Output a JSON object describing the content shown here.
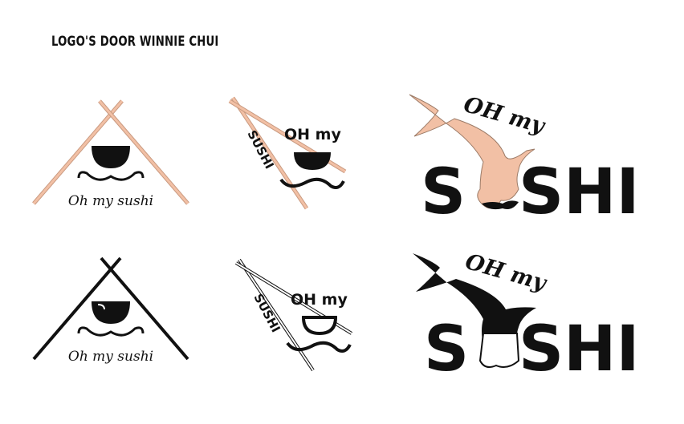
{
  "heading": "LOGO'S DOOR WINNIE CHUI",
  "colors": {
    "ink": "#111111",
    "salmon": "#f2c0a5",
    "salmon_stroke": "#c99a80",
    "white": "#ffffff"
  },
  "logos": [
    {
      "text": "Oh my sushi",
      "variant": "color"
    },
    {
      "text_top": "OH my",
      "text_side": "SUSHI",
      "variant": "color"
    },
    {
      "text_top": "OH my",
      "text_big_left": "S",
      "text_big_right": "SHI",
      "variant": "color"
    },
    {
      "text": "Oh my sushi",
      "variant": "black"
    },
    {
      "text_top": "OH my",
      "text_side": "SUSHI",
      "variant": "outline"
    },
    {
      "text_top": "OH my",
      "text_big_left": "S",
      "text_big_right": "SHI",
      "variant": "black"
    }
  ]
}
